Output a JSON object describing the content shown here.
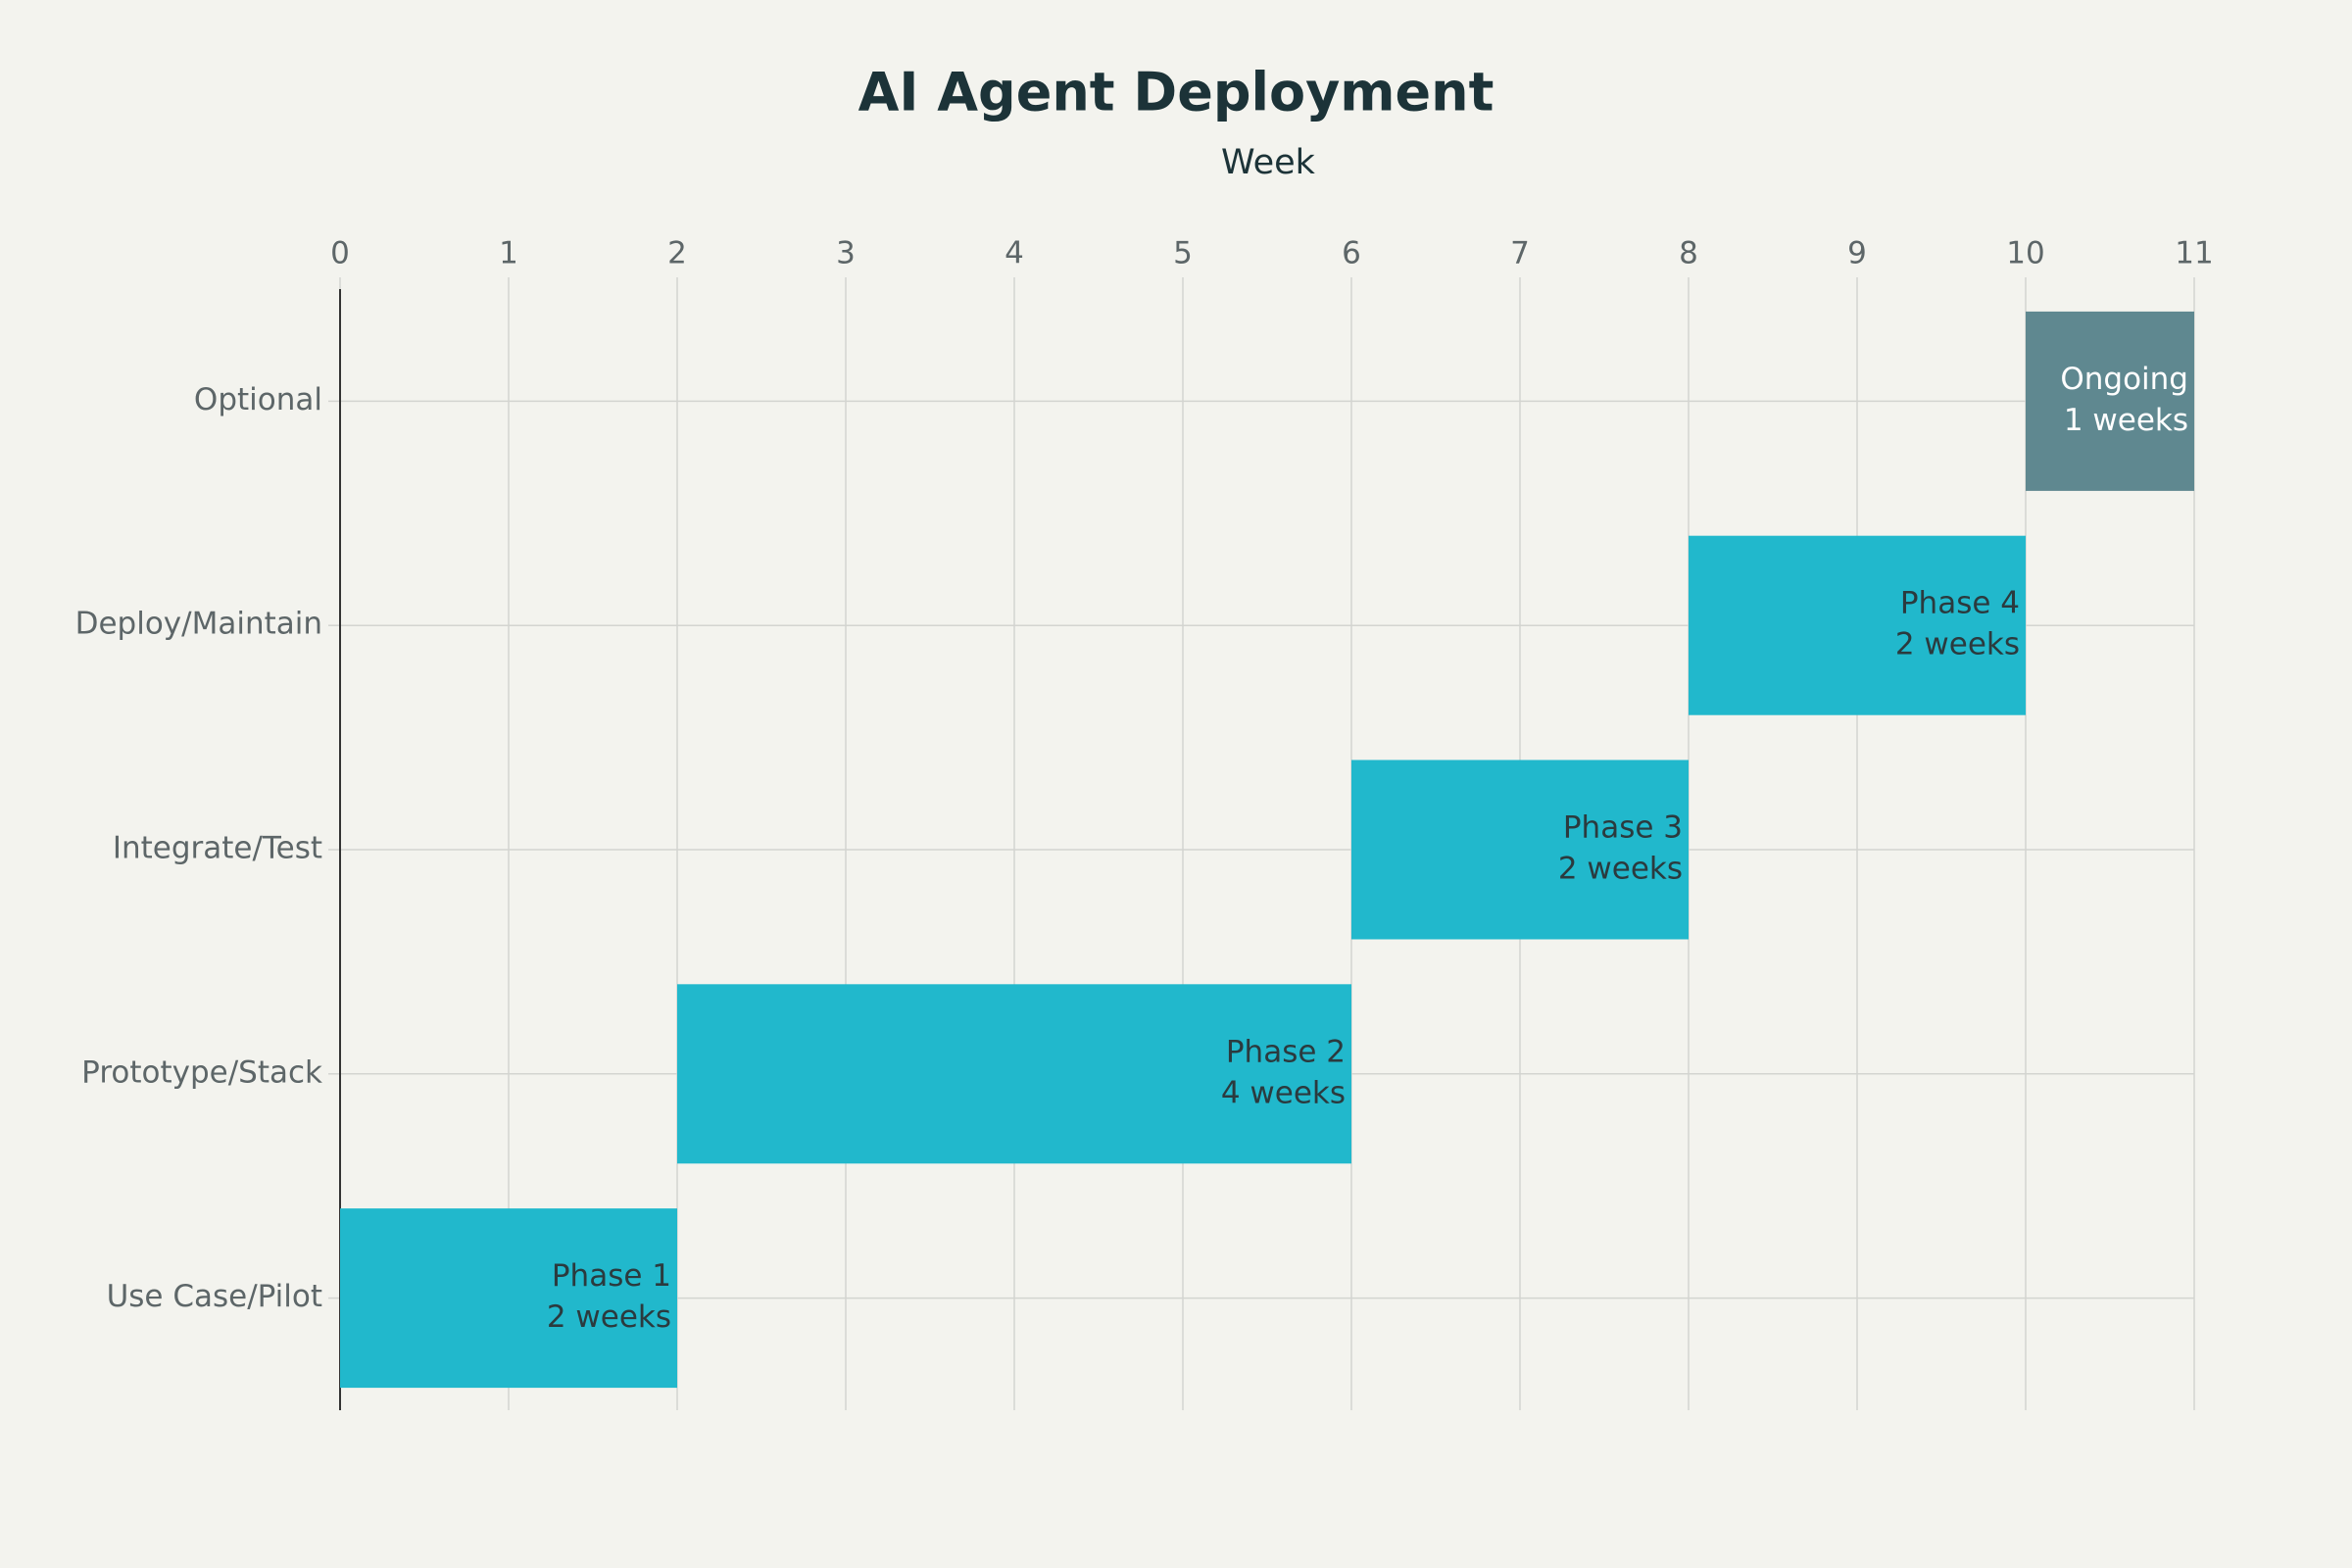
{
  "chart_data": {
    "type": "gantt",
    "title": "AI Agent Deployment",
    "x_label": "Week",
    "categories": [
      "Optional",
      "Deploy/Maintain",
      "Integrate/Test",
      "Prototype/Stack",
      "Use Case/Pilot"
    ],
    "starts": [
      10,
      8,
      6,
      2,
      0
    ],
    "values": [
      1,
      2,
      2,
      4,
      2
    ],
    "phases": [
      "Ongoing",
      "Phase 4",
      "Phase 3",
      "Phase 2",
      "Phase 1"
    ],
    "value_labels": [
      "1 weeks",
      "2 weeks",
      "2 weeks",
      "4 weeks",
      "2 weeks"
    ],
    "colors": [
      "#5f8890",
      "#21b8cc",
      "#21b8cc",
      "#21b8cc",
      "#21b8cc"
    ],
    "label_colors": [
      "#ffffff",
      "#2b3a3e",
      "#2b3a3e",
      "#2b3a3e",
      "#2b3a3e"
    ],
    "xlim": [
      0,
      11
    ],
    "xticks": [
      0,
      1,
      2,
      3,
      4,
      5,
      6,
      7,
      8,
      9,
      10,
      11
    ],
    "grid": true
  }
}
